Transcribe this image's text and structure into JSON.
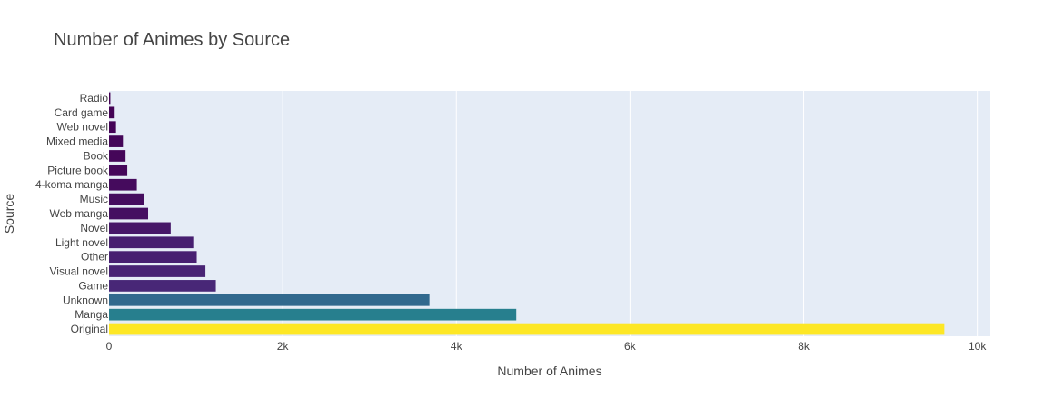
{
  "chart_data": {
    "type": "bar",
    "orientation": "horizontal",
    "title": "Number of Animes by Source",
    "xlabel": "Number of Animes",
    "ylabel": "Source",
    "xlim": [
      0,
      10150
    ],
    "xticks": [
      0,
      2000,
      4000,
      6000,
      8000,
      10000
    ],
    "xtick_labels": [
      "0",
      "2k",
      "4k",
      "6k",
      "8k",
      "10k"
    ],
    "grid": true,
    "legend": "none",
    "colorscale": "viridis",
    "plot_bgcolor": "#e5ecf6",
    "categories": [
      "Radio",
      "Card game",
      "Web novel",
      "Mixed media",
      "Book",
      "Picture book",
      "4-koma manga",
      "Music",
      "Web manga",
      "Novel",
      "Light novel",
      "Other",
      "Visual novel",
      "Game",
      "Unknown",
      "Manga",
      "Original"
    ],
    "values": [
      15,
      65,
      80,
      160,
      190,
      210,
      320,
      400,
      450,
      710,
      970,
      1010,
      1110,
      1230,
      3690,
      4690,
      9620
    ]
  }
}
